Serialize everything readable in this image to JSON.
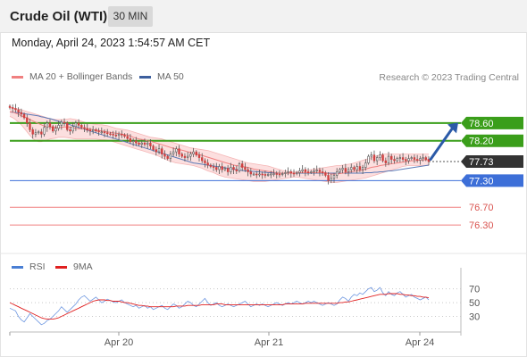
{
  "header": {
    "instrument": "Crude Oil (WTI)",
    "interval": "30 MIN"
  },
  "timestamp": "Monday, April 24, 2023 1:54:57 AM CET",
  "legend": {
    "main": [
      {
        "label": "MA 20 + Bollinger Bands",
        "color": "#f08080"
      },
      {
        "label": "MA 50",
        "color": "#3d5f9e"
      }
    ],
    "rsi": [
      {
        "label": "RSI",
        "color": "#4a7fd4"
      },
      {
        "label": "9MA",
        "color": "#e02020"
      }
    ]
  },
  "source_note": "Research © 2023 Trading Central",
  "colors": {
    "resistance": "#3a9e1a",
    "pivot": "#3d6fd8",
    "support": "#f08080",
    "last_price": "#333333",
    "arrow": "#2b5aa8",
    "candle_up": "#ffffff",
    "candle_down": "#d04040",
    "bollinger_fill": "#fbd9d9"
  },
  "chart_data": {
    "type": "candlestick",
    "x_ticks": [
      "Apr 20",
      "Apr 21",
      "Apr 24"
    ],
    "ylim": [
      76.1,
      79.0
    ],
    "close": [
      78.95,
      78.93,
      78.9,
      78.84,
      78.8,
      78.72,
      78.6,
      78.45,
      78.35,
      78.38,
      78.4,
      78.35,
      78.5,
      78.6,
      78.52,
      78.42,
      78.48,
      78.55,
      78.62,
      78.6,
      78.45,
      78.42,
      78.52,
      78.6,
      78.55,
      78.5,
      78.48,
      78.44,
      78.42,
      78.45,
      78.42,
      78.4,
      78.4,
      78.38,
      78.36,
      78.35,
      78.33,
      78.32,
      78.35,
      78.33,
      78.3,
      78.25,
      78.18,
      78.2,
      78.15,
      78.12,
      78.15,
      78.12,
      78.15,
      78.08,
      78.0,
      77.95,
      78.02,
      77.9,
      77.85,
      77.8,
      77.9,
      77.95,
      78.02,
      77.9,
      77.85,
      77.82,
      77.85,
      77.9,
      77.95,
      77.88,
      77.82,
      77.75,
      77.7,
      77.65,
      77.62,
      77.6,
      77.55,
      77.62,
      77.55,
      77.58,
      77.5,
      77.6,
      77.55,
      77.52,
      77.68,
      77.6,
      77.55,
      77.5,
      77.45,
      77.45,
      77.44,
      77.45,
      77.44,
      77.43,
      77.44,
      77.45,
      77.46,
      77.45,
      77.44,
      77.46,
      77.48,
      77.5,
      77.47,
      77.46,
      77.48,
      77.52,
      77.55,
      77.5,
      77.49,
      77.5,
      77.52,
      77.54,
      77.5,
      77.48,
      77.42,
      77.3,
      77.35,
      77.42,
      77.5,
      77.55,
      77.58,
      77.5,
      77.55,
      77.6,
      77.55,
      77.62,
      77.55,
      77.6,
      77.7,
      77.85,
      77.88,
      77.75,
      77.82,
      77.88,
      77.75,
      77.7,
      77.85,
      77.78,
      77.75,
      77.8,
      77.82,
      77.78,
      77.75,
      77.8,
      77.82,
      77.78,
      77.76,
      77.8,
      77.82,
      77.78,
      77.73
    ],
    "ma20": [
      78.85,
      78.85,
      78.82,
      78.8,
      78.76,
      78.74,
      78.71,
      78.68,
      78.65,
      78.62,
      78.59,
      78.56,
      78.53,
      78.52,
      78.51,
      78.5,
      78.5,
      78.5,
      78.5,
      78.51,
      78.51,
      78.51,
      78.49,
      78.48,
      78.47,
      78.47,
      78.47,
      78.46,
      78.46,
      78.45,
      78.44,
      78.43,
      78.42,
      78.41,
      78.4,
      78.39,
      78.38,
      78.37,
      78.36,
      78.35,
      78.34,
      78.33,
      78.31,
      78.28,
      78.26,
      78.24,
      78.23,
      78.22,
      78.2,
      78.19,
      78.17,
      78.15,
      78.13,
      78.11,
      78.09,
      78.07,
      78.05,
      78.03,
      78.01,
      78.0,
      77.99,
      77.97,
      77.95,
      77.94,
      77.92,
      77.9,
      77.89,
      77.87,
      77.85,
      77.83,
      77.81,
      77.79,
      77.77,
      77.75,
      77.73,
      77.71,
      77.69,
      77.67,
      77.65,
      77.64,
      77.63,
      77.62,
      77.61,
      77.6,
      77.58,
      77.56,
      77.55,
      77.54,
      77.53,
      77.52,
      77.51,
      77.5,
      77.49,
      77.48,
      77.47,
      77.47,
      77.47,
      77.47,
      77.47,
      77.47,
      77.47,
      77.48,
      77.48,
      77.48,
      77.48,
      77.48,
      77.48,
      77.48,
      77.48,
      77.48,
      77.47,
      77.46,
      77.45,
      77.45,
      77.45,
      77.46,
      77.47,
      77.48,
      77.49,
      77.5,
      77.51,
      77.52,
      77.53,
      77.54,
      77.56,
      77.58,
      77.6,
      77.61,
      77.62,
      77.64,
      77.65,
      77.66,
      77.67,
      77.68,
      77.69,
      77.7,
      77.71,
      77.72,
      77.73,
      77.74,
      77.75,
      77.75,
      77.76,
      77.76,
      77.77,
      77.77,
      77.77
    ],
    "ma50": [
      78.85,
      78.84,
      78.84,
      78.83,
      78.82,
      78.81,
      78.8,
      78.79,
      78.78,
      78.77,
      78.76,
      78.74,
      78.73,
      78.71,
      78.7,
      78.68,
      78.66,
      78.64,
      78.62,
      78.6,
      78.58,
      78.56,
      78.54,
      78.52,
      78.5,
      78.48,
      78.46,
      78.44,
      78.42,
      78.4,
      78.38,
      78.36,
      78.34,
      78.32,
      78.3,
      78.28,
      78.26,
      78.24,
      78.22,
      78.2,
      78.18,
      78.16,
      78.14,
      78.12,
      78.1,
      78.08,
      78.06,
      78.04,
      78.02,
      78.0,
      77.98,
      77.96,
      77.94,
      77.92,
      77.9,
      77.88,
      77.86,
      77.84,
      77.82,
      77.8,
      77.78,
      77.76,
      77.74,
      77.72,
      77.7,
      77.69,
      77.68,
      77.67,
      77.66,
      77.65,
      77.64,
      77.63,
      77.62,
      77.61,
      77.6,
      77.59,
      77.58,
      77.57,
      77.56,
      77.55,
      77.54,
      77.53,
      77.52,
      77.52,
      77.51,
      77.51,
      77.5,
      77.5,
      77.49,
      77.49,
      77.48,
      77.48,
      77.48,
      77.47,
      77.47,
      77.47,
      77.47,
      77.47,
      77.47,
      77.47,
      77.47,
      77.47,
      77.47,
      77.47,
      77.47,
      77.47,
      77.47,
      77.47,
      77.47,
      77.47,
      77.47,
      77.47,
      77.47,
      77.47,
      77.47,
      77.47,
      77.47,
      77.47,
      77.47,
      77.47,
      77.47,
      77.47,
      77.47,
      77.47,
      77.48,
      77.48,
      77.48,
      77.49,
      77.49,
      77.5,
      77.5,
      77.51,
      77.52,
      77.52,
      77.53,
      77.54,
      77.55,
      77.56,
      77.57,
      77.58,
      77.59,
      77.6,
      77.61,
      77.62,
      77.63,
      77.64,
      77.65
    ],
    "bb_upper": [
      78.95,
      78.95,
      78.92,
      78.92,
      78.9,
      78.88,
      78.86,
      78.84,
      78.82,
      78.8,
      78.78,
      78.76,
      78.74,
      78.72,
      78.7,
      78.69,
      78.68,
      78.68,
      78.68,
      78.68,
      78.69,
      78.7,
      78.69,
      78.68,
      78.66,
      78.64,
      78.62,
      78.6,
      78.59,
      78.58,
      78.57,
      78.56,
      78.56,
      78.55,
      78.54,
      78.52,
      78.5,
      78.48,
      78.47,
      78.46,
      78.45,
      78.44,
      78.42,
      78.4,
      78.38,
      78.36,
      78.34,
      78.32,
      78.3,
      78.28,
      78.27,
      78.26,
      78.25,
      78.24,
      78.22,
      78.2,
      78.18,
      78.16,
      78.14,
      78.12,
      78.1,
      78.08,
      78.06,
      78.04,
      78.03,
      78.02,
      78.01,
      78.0,
      77.99,
      77.98,
      77.96,
      77.94,
      77.92,
      77.9,
      77.88,
      77.86,
      77.84,
      77.82,
      77.8,
      77.78,
      77.76,
      77.74,
      77.72,
      77.7,
      77.69,
      77.68,
      77.67,
      77.66,
      77.65,
      77.64,
      77.63,
      77.61,
      77.59,
      77.57,
      77.55,
      77.53,
      77.52,
      77.51,
      77.5,
      77.5,
      77.5,
      77.51,
      77.52,
      77.53,
      77.54,
      77.55,
      77.56,
      77.57,
      77.58,
      77.59,
      77.6,
      77.61,
      77.62,
      77.63,
      77.64,
      77.64,
      77.65,
      77.66,
      77.67,
      77.68,
      77.7,
      77.72,
      77.74,
      77.76,
      77.78,
      77.8,
      77.82,
      77.84,
      77.86,
      77.88,
      77.9,
      77.9,
      77.9,
      77.9,
      77.9,
      77.9,
      77.9,
      77.9,
      77.9,
      77.9,
      77.9,
      77.9,
      77.9,
      77.9,
      77.9,
      77.9,
      77.9
    ],
    "bb_lower": [
      78.75,
      78.72,
      78.68,
      78.62,
      78.56,
      78.48,
      78.4,
      78.32,
      78.25,
      78.2,
      78.18,
      78.18,
      78.2,
      78.22,
      78.24,
      78.25,
      78.26,
      78.28,
      78.28,
      78.28,
      78.27,
      78.26,
      78.25,
      78.24,
      78.24,
      78.24,
      78.24,
      78.24,
      78.24,
      78.24,
      78.24,
      78.23,
      78.22,
      78.22,
      78.21,
      78.2,
      78.18,
      78.16,
      78.14,
      78.12,
      78.1,
      78.08,
      78.06,
      78.04,
      78.02,
      78.0,
      77.98,
      77.96,
      77.94,
      77.92,
      77.9,
      77.88,
      77.85,
      77.82,
      77.79,
      77.76,
      77.74,
      77.72,
      77.7,
      77.69,
      77.68,
      77.67,
      77.66,
      77.65,
      77.64,
      77.62,
      77.6,
      77.58,
      77.55,
      77.52,
      77.5,
      77.48,
      77.45,
      77.42,
      77.4,
      77.38,
      77.37,
      77.36,
      77.35,
      77.34,
      77.33,
      77.32,
      77.31,
      77.3,
      77.29,
      77.28,
      77.28,
      77.28,
      77.28,
      77.28,
      77.29,
      77.3,
      77.31,
      77.32,
      77.33,
      77.34,
      77.35,
      77.36,
      77.37,
      77.38,
      77.38,
      77.37,
      77.36,
      77.35,
      77.34,
      77.33,
      77.32,
      77.31,
      77.3,
      77.29,
      77.28,
      77.27,
      77.26,
      77.26,
      77.26,
      77.27,
      77.28,
      77.29,
      77.3,
      77.31,
      77.32,
      77.33,
      77.34,
      77.35,
      77.36,
      77.38,
      77.4,
      77.42,
      77.44,
      77.46,
      77.48,
      77.5,
      77.52,
      77.54,
      77.56,
      77.58,
      77.6,
      77.62,
      77.63,
      77.64,
      77.64,
      77.64,
      77.64,
      77.64,
      77.64,
      77.64,
      77.64
    ],
    "levels": [
      {
        "label": "78.60",
        "value": 78.6,
        "kind": "resistance"
      },
      {
        "label": "78.20",
        "value": 78.2,
        "kind": "resistance"
      },
      {
        "label": "77.73",
        "value": 77.73,
        "kind": "last"
      },
      {
        "label": "77.30",
        "value": 77.3,
        "kind": "pivot"
      },
      {
        "label": "76.70",
        "value": 76.7,
        "kind": "support"
      },
      {
        "label": "76.30",
        "value": 76.3,
        "kind": "support"
      }
    ],
    "rsi": {
      "ylim": [
        10,
        85
      ],
      "ticks": [
        70,
        50,
        30
      ],
      "values": [
        42,
        40,
        38,
        30,
        25,
        22,
        28,
        34,
        30,
        26,
        22,
        18,
        20,
        24,
        26,
        30,
        34,
        38,
        44,
        40,
        36,
        40,
        44,
        48,
        54,
        58,
        60,
        56,
        52,
        55,
        58,
        54,
        50,
        52,
        55,
        53,
        51,
        50,
        52,
        54,
        50,
        48,
        46,
        44,
        46,
        42,
        44,
        46,
        42,
        44,
        40,
        42,
        44,
        46,
        42,
        40,
        44,
        48,
        46,
        42,
        44,
        48,
        52,
        50,
        46,
        44,
        48,
        52,
        56,
        50,
        46,
        48,
        50,
        46,
        44,
        46,
        48,
        46,
        44,
        46,
        48,
        50,
        52,
        48,
        44,
        46,
        48,
        46,
        48,
        46,
        44,
        46,
        48,
        50,
        48,
        46,
        48,
        50,
        48,
        50,
        52,
        50,
        48,
        50,
        52,
        50,
        52,
        50,
        48,
        46,
        48,
        50,
        48,
        46,
        48,
        54,
        58,
        56,
        52,
        58,
        62,
        60,
        64,
        62,
        66,
        70,
        72,
        66,
        68,
        72,
        64,
        60,
        66,
        62,
        60,
        64,
        66,
        62,
        58,
        60,
        62,
        58,
        56,
        54,
        56,
        58,
        54
      ],
      "ma9": [
        50,
        48,
        46,
        44,
        42,
        40,
        38,
        36,
        34,
        32,
        30,
        28,
        27,
        26,
        26,
        26,
        27,
        28,
        30,
        32,
        34,
        36,
        38,
        40,
        42,
        44,
        46,
        48,
        50,
        52,
        53,
        54,
        54,
        54,
        53,
        53,
        52,
        52,
        52,
        51,
        50,
        50,
        49,
        48,
        47,
        46,
        46,
        45,
        45,
        44,
        44,
        44,
        44,
        44,
        44,
        44,
        44,
        44,
        45,
        45,
        45,
        45,
        46,
        46,
        46,
        46,
        46,
        47,
        47,
        47,
        47,
        47,
        48,
        48,
        48,
        47,
        47,
        47,
        47,
        47,
        47,
        47,
        47,
        47,
        47,
        47,
        47,
        47,
        47,
        47,
        47,
        47,
        47,
        47,
        47,
        47,
        48,
        48,
        48,
        48,
        48,
        48,
        48,
        49,
        49,
        49,
        49,
        49,
        49,
        49,
        49,
        49,
        49,
        49,
        49,
        50,
        50,
        51,
        51,
        52,
        53,
        54,
        55,
        56,
        57,
        58,
        59,
        60,
        61,
        62,
        62,
        62,
        63,
        63,
        63,
        63,
        62,
        62,
        61,
        61,
        60,
        60,
        59,
        59,
        58,
        58,
        57
      ]
    }
  }
}
